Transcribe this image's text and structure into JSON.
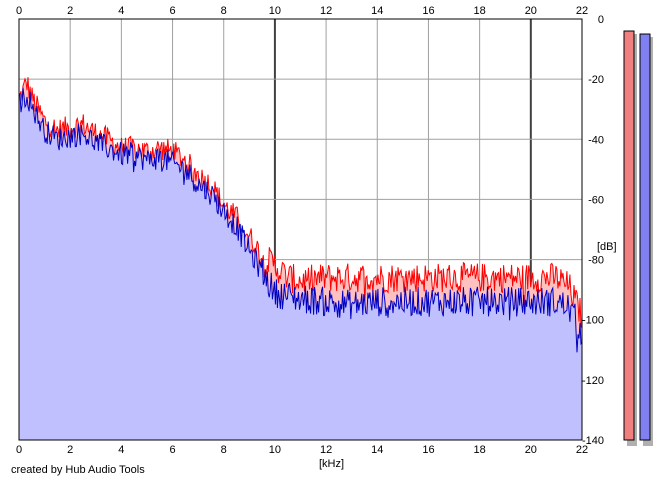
{
  "footer_text": "created by Hub Audio Tools",
  "chart_data": {
    "type": "area",
    "title": "",
    "xlabel": "[kHz]",
    "ylabel": "[dB]",
    "xlim": [
      0,
      22
    ],
    "ylim": [
      -140,
      0
    ],
    "x_ticks": [
      0,
      2,
      4,
      6,
      8,
      10,
      12,
      14,
      16,
      18,
      20,
      22
    ],
    "y_ticks": [
      0,
      -20,
      -40,
      -60,
      -80,
      -100,
      -120,
      -140
    ],
    "grid": true,
    "series": [
      {
        "color": "#ff0000",
        "fill": "#ffc0c0",
        "x": [
          0,
          0.3,
          0.5,
          1,
          1.5,
          2,
          2.5,
          3,
          3.5,
          4,
          4.5,
          5,
          5.5,
          6,
          6.5,
          7,
          7.5,
          8,
          8.5,
          9,
          9.5,
          10,
          10.5,
          11,
          12,
          13,
          14,
          15,
          16,
          17,
          18,
          19,
          20,
          21,
          21.5,
          22
        ],
        "values": [
          -27,
          -21,
          -26,
          -34,
          -37,
          -36,
          -35,
          -38,
          -40,
          -43,
          -43,
          -44,
          -43,
          -44,
          -47,
          -52,
          -55,
          -62,
          -66,
          -72,
          -79,
          -82,
          -86,
          -87,
          -86,
          -86,
          -86,
          -86,
          -86,
          -86,
          -86,
          -86,
          -86,
          -86,
          -89,
          -99
        ]
      },
      {
        "color": "#0000c0",
        "fill": "#c0c0ff",
        "x": [
          0,
          0.3,
          0.5,
          1,
          1.5,
          2,
          2.5,
          3,
          3.5,
          4,
          4.5,
          5,
          5.5,
          6,
          6.5,
          7,
          7.5,
          8,
          8.5,
          9,
          9.5,
          10,
          10.5,
          11,
          12,
          13,
          14,
          15,
          16,
          17,
          18,
          19,
          20,
          21,
          21.5,
          22
        ],
        "values": [
          -28,
          -25,
          -29,
          -37,
          -40,
          -39,
          -38,
          -41,
          -43,
          -45,
          -45,
          -47,
          -46,
          -48,
          -50,
          -55,
          -58,
          -64,
          -69,
          -77,
          -84,
          -91,
          -92,
          -93,
          -94,
          -95,
          -94,
          -94,
          -94,
          -94,
          -94,
          -94,
          -94,
          -94,
          -96,
          -104
        ]
      }
    ],
    "level_meters": [
      {
        "color": "#f08080",
        "level_db": -2
      },
      {
        "color": "#8080f0",
        "level_db": -3
      }
    ]
  }
}
